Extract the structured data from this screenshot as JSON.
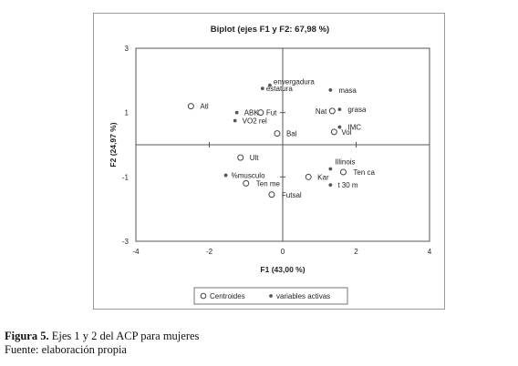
{
  "chart_data": {
    "type": "scatter",
    "title": "Biplot (ejes F1 y F2: 67,98 %)",
    "xlabel": "F1 (43,00 %)",
    "ylabel": "F2 (24,97 %)",
    "xlim": [
      -4,
      4
    ],
    "ylim": [
      -3,
      3
    ],
    "xticks": [
      -4,
      -2,
      0,
      2,
      4
    ],
    "yticks": [
      -3,
      -1,
      1,
      3
    ],
    "xtick_labels": [
      "-4",
      "-2",
      "0",
      "2",
      "4"
    ],
    "ytick_labels": [
      "-3",
      "-1",
      "1",
      "3"
    ],
    "legend_position": "bottom",
    "series": [
      {
        "name": "Centroides",
        "marker": "open-circle",
        "points": [
          {
            "label": "Atl",
            "x": -2.5,
            "y": 1.2
          },
          {
            "label": "Fut",
            "x": -0.6,
            "y": 1.0
          },
          {
            "label": "Bal",
            "x": -0.15,
            "y": 0.35
          },
          {
            "label": "Ult",
            "x": -1.15,
            "y": -0.4
          },
          {
            "label": "Ten me",
            "x": -1.0,
            "y": -1.2
          },
          {
            "label": "Futsal",
            "x": -0.3,
            "y": -1.55
          },
          {
            "label": "Kar",
            "x": 0.7,
            "y": -1.0
          },
          {
            "label": "Ten ca",
            "x": 1.65,
            "y": -0.85
          },
          {
            "label": "Nat",
            "x": 1.35,
            "y": 1.05
          },
          {
            "label": "Vol",
            "x": 1.4,
            "y": 0.4
          }
        ]
      },
      {
        "name": "variables activas",
        "marker": "dot",
        "points": [
          {
            "label": "envergadura",
            "x": -0.35,
            "y": 1.85
          },
          {
            "label": "estatura",
            "x": -0.55,
            "y": 1.75
          },
          {
            "label": "masa",
            "x": 1.3,
            "y": 1.7
          },
          {
            "label": "grasa",
            "x": 1.55,
            "y": 1.1
          },
          {
            "label": "ABK",
            "x": -1.25,
            "y": 1.0
          },
          {
            "label": "VO2 rel",
            "x": -1.3,
            "y": 0.75
          },
          {
            "label": "IMC",
            "x": 1.55,
            "y": 0.55
          },
          {
            "label": "Illinois",
            "x": 1.3,
            "y": -0.75
          },
          {
            "label": "%musculo",
            "x": -1.55,
            "y": -0.95
          },
          {
            "label": "t 30 m",
            "x": 1.3,
            "y": -1.25
          }
        ]
      }
    ]
  },
  "caption": {
    "figure_label": "Figura 5.",
    "figure_text": " Ejes 1 y 2 del ACP para mujeres",
    "source": "Fuente: elaboración propia"
  }
}
